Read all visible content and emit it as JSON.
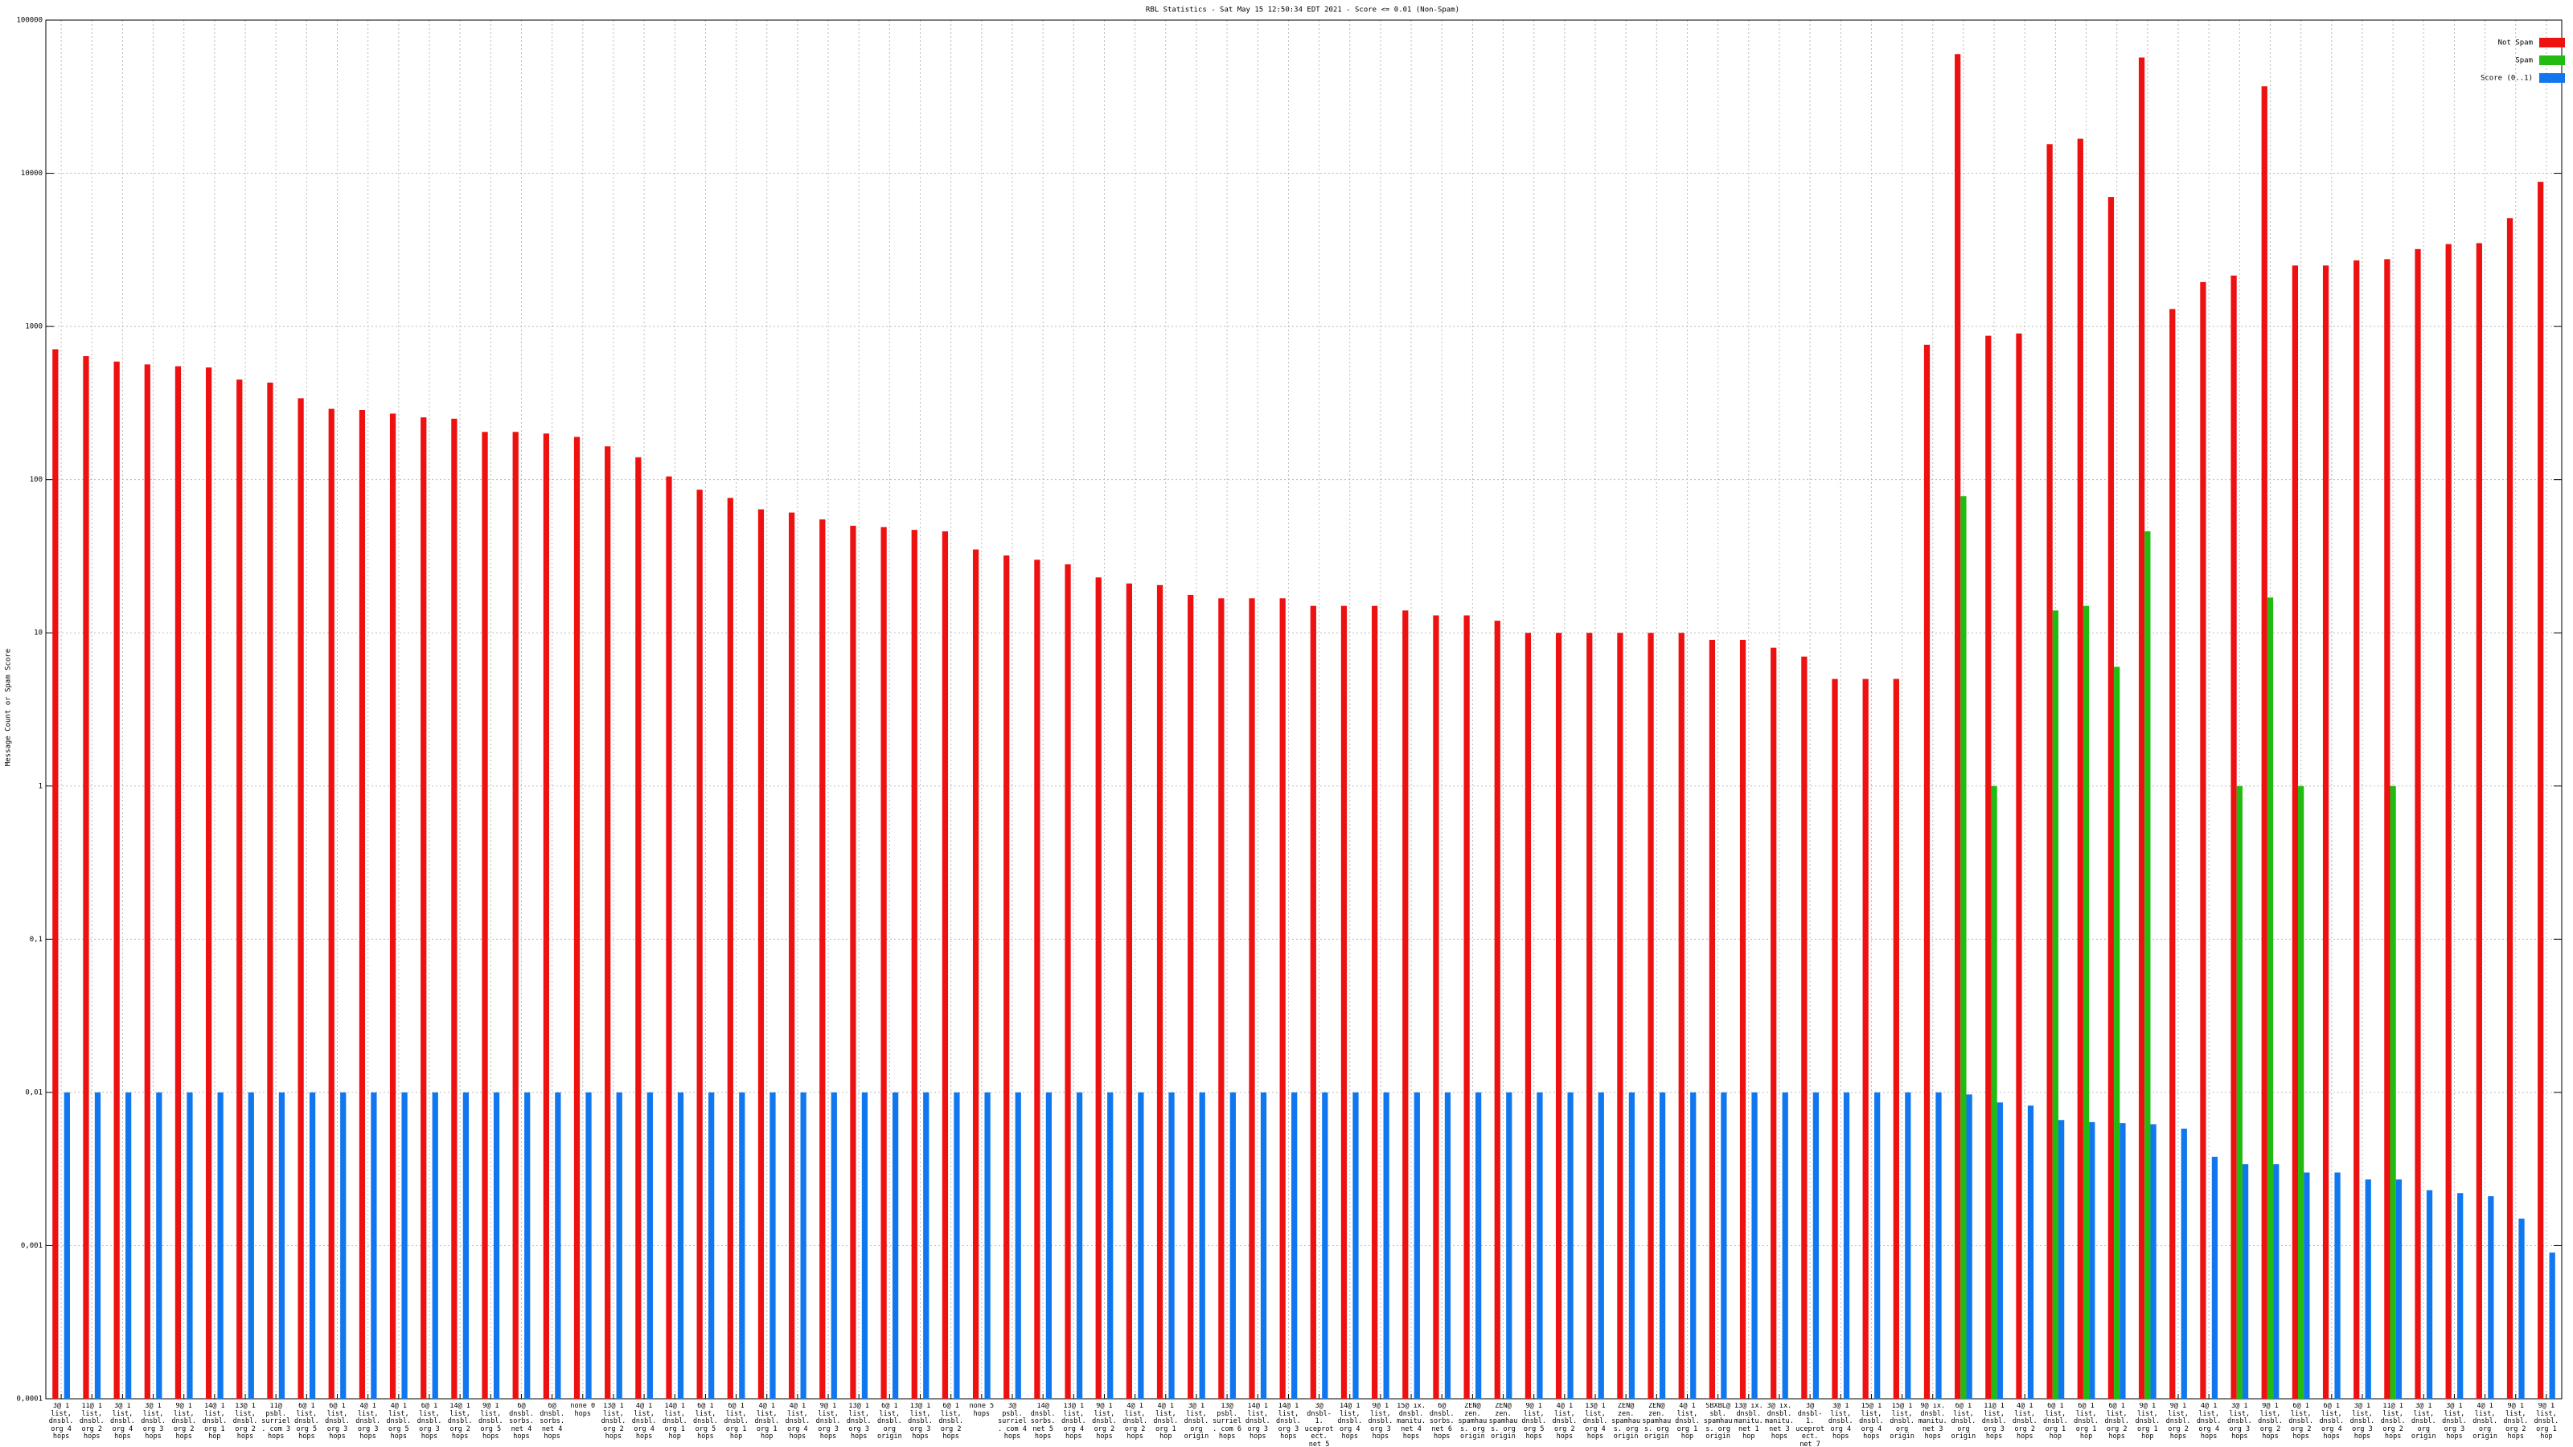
{
  "chart_data": {
    "type": "bar",
    "title": "RBL Statistics - Sat May 15 12:50:34 EDT 2021 - Score <= 0.01 (Non-Spam)",
    "y_label": "Message Count or Spam Score",
    "log_scale": true,
    "grid": true,
    "legend": "upper right",
    "ylim": [
      0.0001,
      100000
    ],
    "yticks": [
      {
        "value": 0.0001,
        "label": "0,0001"
      },
      {
        "value": 0.001,
        "label": "0,001"
      },
      {
        "value": 0.01,
        "label": "0,01"
      },
      {
        "value": 0.1,
        "label": "0,1"
      },
      1,
      10,
      100,
      1000,
      10000,
      100000
    ],
    "categories": [
      "3@ 1 list, dnsbl. org 4 hops",
      "11@ 1 list, dnsbl. org 2 hops",
      "3@ 1 list, dnsbl. org 4 hops",
      "3@ 1 list, dnsbl. org 3 hops",
      "9@ 1 list, dnsbl. org 2 hops",
      "14@ 1 list, dnsbl. org 1 hop",
      "13@ 1 list, dnsbl. org 2 hops",
      "11@ psbl. surriel. com 3 hops",
      "6@ 1 list, dnsbl. org 5 hops",
      "6@ 1 list, dnsbl. org 3 hops",
      "4@ 1 list, dnsbl. org 3 hops",
      "4@ 1 list, dnsbl. org 5 hops",
      "6@ 1 list, dnsbl. org 3 hops",
      "14@ 1 list, dnsbl. org 2 hops",
      "9@ 1 list, dnsbl. org 5 hops",
      "6@ dnsbl. sorbs. net 4 hops",
      "6@ dnsbl. sorbs. net 4 hops",
      "none 0 hops",
      "13@ 1 list, dnsbl. org 2 hops",
      "4@ 1 list, dnsbl. org 4 hops",
      "14@ 1 list, dnsbl. org 1 hop",
      "6@ 1 list, dnsbl. org 5 hops",
      "6@ 1 list, dnsbl. org 1 hop",
      "4@ 1 list, dnsbl. org 1 hop",
      "4@ 1 list, dnsbl. org 4 hops",
      "9@ 1 list, dnsbl. org 3 hops",
      "13@ 1 list, dnsbl. org 3 hops",
      "6@ 1 list, dnsbl. org origin",
      "13@ 1 list, dnsbl. org 3 hops",
      "6@ 1 list, dnsbl. org 2 hops",
      "none 5 hops",
      "3@ psbl. surriel. com 4 hops",
      "14@ dnsbl. sorbs. net 5 hops",
      "13@ 1 list, dnsbl. org 4 hops",
      "9@ 1 list, dnsbl. org 2 hops",
      "4@ 1 list, dnsbl. org 2 hops",
      "4@ 1 list, dnsbl. org 1 hop",
      "3@ 1 list, dnsbl. org origin",
      "13@ psbl. surriel. com 6 hops",
      "14@ 1 list, dnsbl. org 3 hops",
      "14@ 1 list, dnsbl. org 3 hops",
      "3@ dnsbl-1. uceprotect. net 5 hops",
      "14@ 1 list, dnsbl. org 4 hops",
      "9@ 1 list, dnsbl. org 3 hops",
      "15@ ix. dnsbl. manitu. net 4 hops",
      "6@ dnsbl. sorbs. net 6 hops",
      "ZEN@ zen. spamhaus. org origin",
      "ZEN@ zen. spamhaus. org origin",
      "9@ 1 list, dnsbl. org 5 hops",
      "4@ 1 list, dnsbl. org 2 hops",
      "13@ 1 list, dnsbl. org 4 hops",
      "ZEN@ zen. spamhaus. org origin",
      "ZEN@ zen. spamhaus. org origin",
      "4@ 1 list, dnsbl. org 1 hop",
      "SBXBL@ sbl. spamhaus. org origin",
      "13@ ix. dnsbl. manitu. net 1 hop",
      "3@ ix. dnsbl. manitu. net 3 hops",
      "3@ dnsbl-1. uceprotect. net 7 hops",
      "3@ 1 list, dnsbl. org 4 hops",
      "15@ 1 list, dnsbl. org 4 hops",
      "15@ 1 list, dnsbl. org origin",
      "9@ ix. dnsbl. manitu. net 3 hops",
      "6@ 1 list, dnsbl. org origin",
      "11@ 1 list, dnsbl. org 3 hops",
      "4@ 1 list, dnsbl. org 2 hops",
      "6@ 1 list, dnsbl. org 1 hop",
      "6@ 1 list, dnsbl. org 1 hop",
      "6@ 1 list, dnsbl. org 2 hops",
      "9@ 1 list, dnsbl. org 1 hop",
      "9@ 1 list, dnsbl. org 2 hops",
      "4@ 1 list, dnsbl. org 4 hops",
      "3@ 1 list, dnsbl. org 3 hops",
      "9@ 1 list, dnsbl. org 2 hops",
      "6@ 1 list, dnsbl. org 2 hops",
      "6@ 1 list, dnsbl. org 4 hops",
      "3@ 1 list, dnsbl. org 3 hops",
      "11@ 1 list, dnsbl. org 2 hops",
      "3@ 1 list, dnsbl. org origin",
      "3@ 1 list, dnsbl. org 3 hops",
      "4@ 1 list, dnsbl. org origin",
      "9@ 1 list, dnsbl. org 2 hops",
      "9@ 1 list, dnsbl. org 1 hop"
    ],
    "series": [
      {
        "name": "Not Spam",
        "color": "#ee1111",
        "values": [
          710,
          640,
          590,
          565,
          550,
          540,
          450,
          430,
          340,
          290,
          285,
          270,
          255,
          250,
          205,
          205,
          200,
          190,
          165,
          140,
          105,
          86,
          76,
          64,
          61,
          55,
          50,
          49,
          47,
          46,
          35,
          32,
          30,
          28,
          23,
          21,
          20.5,
          17.7,
          16.8,
          16.8,
          16.8,
          15,
          15,
          15,
          14,
          13,
          13,
          12,
          10,
          10,
          10,
          10,
          10,
          10,
          9,
          9,
          8,
          7,
          5,
          5,
          5,
          760,
          60000,
          870,
          900,
          15500,
          16800,
          7000,
          57000,
          1300,
          1950,
          2150,
          37000,
          2500,
          2500,
          2700,
          2750,
          3200,
          3450,
          3500,
          5100,
          8800
        ]
      },
      {
        "name": "Spam",
        "color": "#22bb11",
        "values": [
          null,
          null,
          null,
          null,
          null,
          null,
          null,
          null,
          null,
          null,
          null,
          null,
          null,
          null,
          null,
          null,
          null,
          null,
          null,
          null,
          null,
          null,
          null,
          null,
          null,
          null,
          null,
          null,
          null,
          null,
          null,
          null,
          null,
          null,
          null,
          null,
          null,
          null,
          null,
          null,
          null,
          null,
          null,
          null,
          null,
          null,
          null,
          null,
          null,
          null,
          null,
          null,
          null,
          null,
          null,
          null,
          null,
          null,
          null,
          null,
          null,
          null,
          78,
          1,
          null,
          14,
          15,
          6,
          46,
          null,
          null,
          1,
          17,
          1,
          null,
          null,
          1,
          null,
          null,
          null,
          null,
          null
        ]
      },
      {
        "name": "Score (0..1)",
        "color": "#1177ee",
        "values": [
          0.01,
          0.01,
          0.01,
          0.01,
          0.01,
          0.01,
          0.01,
          0.01,
          0.01,
          0.01,
          0.01,
          0.01,
          0.01,
          0.01,
          0.01,
          0.01,
          0.01,
          0.01,
          0.01,
          0.01,
          0.01,
          0.01,
          0.01,
          0.01,
          0.01,
          0.01,
          0.01,
          0.01,
          0.01,
          0.01,
          0.01,
          0.01,
          0.01,
          0.01,
          0.01,
          0.01,
          0.01,
          0.01,
          0.01,
          0.01,
          0.01,
          0.01,
          0.01,
          0.01,
          0.01,
          0.01,
          0.01,
          0.01,
          0.01,
          0.01,
          0.01,
          0.01,
          0.01,
          0.01,
          0.01,
          0.01,
          0.01,
          0.01,
          0.01,
          0.01,
          0.01,
          0.01,
          0.0097,
          0.0086,
          0.0082,
          0.0066,
          0.0064,
          0.0063,
          0.0062,
          0.0058,
          0.0038,
          0.0034,
          0.0034,
          0.003,
          0.003,
          0.0027,
          0.0027,
          0.0023,
          0.0022,
          0.0021,
          0.0015,
          0.0009
        ]
      }
    ]
  }
}
